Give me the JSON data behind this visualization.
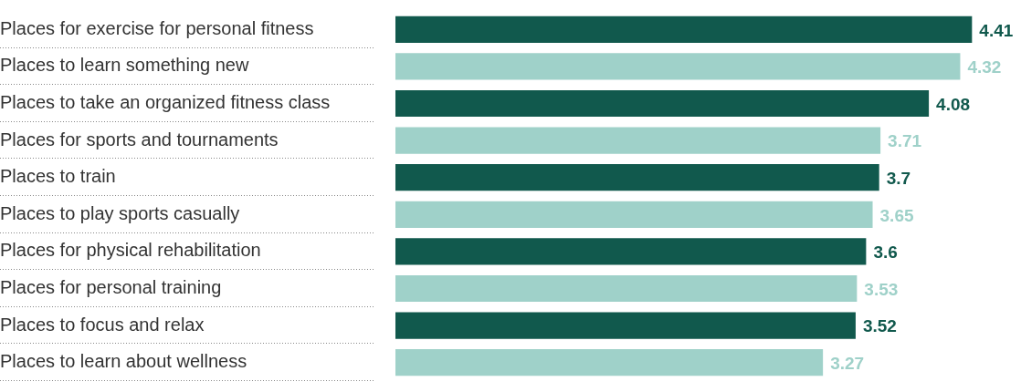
{
  "chart_data": {
    "type": "bar",
    "orientation": "horizontal",
    "data_labels": true,
    "categories": [
      "Places for exercise for personal fitness",
      "Places to learn something new",
      "Places to take an organized fitness class",
      "Places for sports and tournaments",
      "Places to train",
      "Places to play sports casually",
      "Places for physical rehabilitation",
      "Places for personal training",
      "Places to focus and relax",
      "Places to learn about wellness"
    ],
    "values": [
      4.41,
      4.32,
      4.08,
      3.71,
      3.7,
      3.65,
      3.6,
      3.53,
      3.52,
      3.27
    ],
    "colors": [
      "#11594d",
      "#9fd1c9",
      "#11594d",
      "#9fd1c9",
      "#11594d",
      "#9fd1c9",
      "#11594d",
      "#9fd1c9",
      "#11594d",
      "#9fd1c9"
    ]
  }
}
